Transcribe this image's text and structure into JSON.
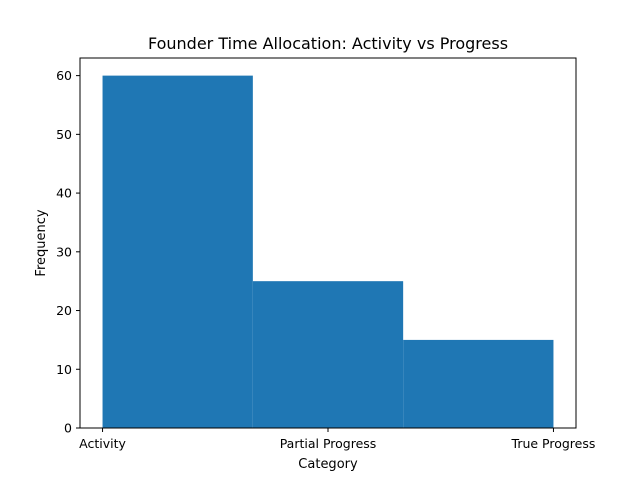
{
  "chart_data": {
    "type": "bar",
    "title": "Founder Time Allocation: Activity vs Progress",
    "xlabel": "Category",
    "ylabel": "Frequency",
    "x_ticks": [
      "Activity",
      "Partial Progress",
      "True Progress"
    ],
    "bins": [
      {
        "from": 0,
        "to": 1,
        "value": 60
      },
      {
        "from": 1,
        "to": 2,
        "value": 25
      },
      {
        "from": 2,
        "to": 3,
        "value": 15
      }
    ],
    "xlim": [
      -0.15,
      3.15
    ],
    "ylim": [
      0,
      63
    ],
    "y_ticks": [
      0,
      10,
      20,
      30,
      40,
      50,
      60
    ],
    "bar_color": "#1f77b4",
    "grid": false,
    "legend": "none"
  }
}
